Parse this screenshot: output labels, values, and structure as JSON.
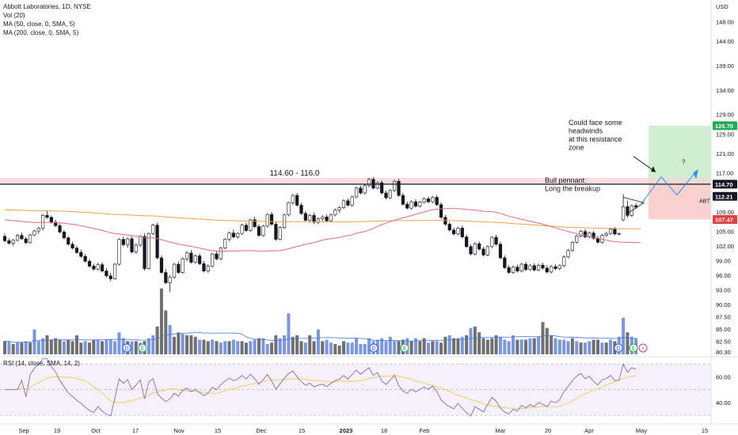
{
  "header": {
    "symbol_line": "Abbott Laboratories, 1D, NYSE",
    "vol_line": "Vol (20)",
    "ma50_line": "MA (50, close, 0, SMA, 5)",
    "ma200_line": "MA (200, close, 0, SMA, 5)",
    "rsi_line": "RSI (14, close, SMA, 14, 2)",
    "currency": "USD"
  },
  "colors": {
    "up": "#ffffff",
    "down": "#131722",
    "ma50": "#e06c7f",
    "ma200": "#f0a04b",
    "vol_up": "#7b96e0",
    "vol_down": "#6f6f6f",
    "vol_ma": "#3d7de0",
    "rsi_line": "#7e57c2",
    "rsi_sma": "#f0d060",
    "target_zone": "#c8ecc8",
    "stop_zone": "#f9c9c9",
    "target_label": "#22ab55",
    "stop_label": "#e0403a"
  },
  "chart_data": {
    "type": "candlestick",
    "symbol": "ABT",
    "timeframe": "1D",
    "ylim": [
      79.5,
      151.0
    ],
    "y_ticks": [
      "148.00",
      "144.00",
      "139.00",
      "134.00",
      "129.00",
      "125.00",
      "121.00",
      "117.00",
      "109.00",
      "105.00",
      "102.00",
      "99.00",
      "96.00",
      "93.00",
      "90.00",
      "87.50",
      "85.00",
      "82.50",
      "80.30"
    ],
    "x_ticks": [
      "Sep",
      "19",
      "Oct",
      "17",
      "Nov",
      "15",
      "Dec",
      "15",
      "2023",
      "18",
      "Feb",
      "Mar",
      "20",
      "Apr",
      "May",
      "15"
    ],
    "price_labels": [
      {
        "text": "126.70",
        "value": 126.7,
        "kind": "target"
      },
      {
        "text": "114.70",
        "value": 114.7,
        "kind": "level"
      },
      {
        "text": "112.21",
        "value": 112.21,
        "kind": "price"
      },
      {
        "text": "107.47",
        "value": 107.47,
        "kind": "stop"
      }
    ],
    "resistance_zone": {
      "label": "114.60 - 116.0",
      "low": 114.6,
      "high": 116.0
    },
    "resistance_line": 114.7,
    "ticker_label": "ABT",
    "annotations": [
      {
        "text": "Could face some\nheadwinds\nat this resistance\nzone"
      },
      {
        "text": "Bull pennant:\nLong the breakup"
      },
      {
        "text": "?"
      }
    ],
    "event_badges": [
      "D",
      "E",
      "D",
      "E",
      "D",
      "E",
      "⚡"
    ],
    "candles": [
      [
        104.0,
        104.6,
        102.8,
        103.1
      ],
      [
        103.1,
        103.6,
        102.3,
        102.6
      ],
      [
        102.6,
        103.5,
        102.0,
        103.2
      ],
      [
        103.2,
        104.5,
        102.9,
        104.2
      ],
      [
        104.2,
        104.8,
        103.3,
        103.5
      ],
      [
        103.5,
        103.9,
        102.4,
        102.7
      ],
      [
        102.7,
        104.5,
        102.5,
        104.3
      ],
      [
        104.3,
        105.4,
        104.0,
        105.1
      ],
      [
        105.1,
        106.0,
        104.5,
        105.7
      ],
      [
        105.7,
        108.6,
        105.2,
        108.3
      ],
      [
        108.3,
        109.2,
        107.6,
        107.9
      ],
      [
        107.9,
        108.3,
        106.6,
        106.9
      ],
      [
        106.9,
        107.4,
        105.9,
        106.2
      ],
      [
        106.2,
        106.6,
        104.6,
        104.9
      ],
      [
        104.9,
        105.3,
        103.4,
        103.7
      ],
      [
        103.7,
        104.1,
        102.1,
        102.4
      ],
      [
        102.4,
        102.9,
        101.3,
        101.6
      ],
      [
        101.6,
        102.1,
        100.4,
        100.7
      ],
      [
        100.7,
        101.3,
        99.6,
        99.9
      ],
      [
        99.9,
        100.4,
        98.6,
        98.9
      ],
      [
        98.9,
        99.4,
        97.6,
        97.9
      ],
      [
        97.9,
        98.4,
        97.0,
        97.3
      ],
      [
        97.3,
        98.6,
        97.0,
        98.2
      ],
      [
        98.2,
        98.7,
        96.6,
        96.9
      ],
      [
        96.9,
        97.5,
        95.6,
        95.9
      ],
      [
        95.9,
        96.5,
        94.8,
        95.3
      ],
      [
        95.3,
        98.5,
        95.1,
        98.3
      ],
      [
        98.3,
        103.6,
        98.0,
        103.4
      ],
      [
        103.4,
        104.0,
        101.9,
        102.3
      ],
      [
        102.3,
        103.8,
        101.6,
        103.5
      ],
      [
        103.5,
        104.0,
        100.5,
        100.8
      ],
      [
        100.8,
        102.6,
        100.4,
        102.2
      ],
      [
        102.2,
        104.3,
        101.9,
        104.0
      ],
      [
        104.0,
        104.6,
        97.0,
        97.4
      ],
      [
        97.4,
        104.8,
        97.2,
        104.6
      ],
      [
        104.6,
        106.6,
        104.3,
        106.3
      ],
      [
        106.3,
        106.8,
        99.3,
        99.6
      ],
      [
        99.6,
        100.1,
        96.3,
        96.6
      ],
      [
        96.6,
        97.3,
        94.2,
        94.5
      ],
      [
        94.5,
        96.1,
        92.6,
        95.6
      ],
      [
        95.6,
        98.6,
        95.3,
        98.3
      ],
      [
        98.3,
        98.9,
        96.3,
        96.6
      ],
      [
        96.6,
        99.7,
        96.3,
        99.4
      ],
      [
        99.4,
        101.0,
        99.0,
        100.6
      ],
      [
        100.6,
        101.2,
        98.4,
        98.7
      ],
      [
        98.7,
        100.3,
        98.4,
        100.0
      ],
      [
        100.0,
        100.5,
        98.1,
        98.4
      ],
      [
        98.4,
        99.0,
        96.6,
        96.9
      ],
      [
        96.9,
        98.3,
        96.5,
        97.9
      ],
      [
        97.9,
        100.6,
        97.6,
        100.4
      ],
      [
        100.4,
        101.0,
        99.1,
        99.4
      ],
      [
        99.4,
        101.9,
        99.1,
        101.6
      ],
      [
        101.6,
        103.6,
        101.3,
        103.4
      ],
      [
        103.4,
        105.0,
        103.0,
        104.7
      ],
      [
        104.7,
        105.4,
        103.6,
        103.9
      ],
      [
        103.9,
        104.9,
        103.5,
        104.6
      ],
      [
        104.6,
        106.6,
        104.3,
        106.3
      ],
      [
        106.3,
        106.8,
        104.9,
        105.2
      ],
      [
        105.2,
        107.6,
        104.9,
        107.4
      ],
      [
        107.4,
        108.0,
        105.7,
        106.0
      ],
      [
        106.0,
        106.5,
        103.9,
        104.2
      ],
      [
        104.2,
        106.4,
        103.9,
        106.1
      ],
      [
        106.1,
        108.7,
        105.8,
        108.5
      ],
      [
        108.5,
        109.0,
        106.2,
        106.5
      ],
      [
        106.5,
        107.0,
        103.1,
        103.4
      ],
      [
        103.4,
        106.1,
        103.1,
        105.8
      ],
      [
        105.8,
        108.7,
        105.5,
        108.4
      ],
      [
        108.4,
        111.1,
        108.1,
        110.9
      ],
      [
        110.9,
        112.7,
        110.5,
        112.4
      ],
      [
        112.4,
        112.9,
        110.1,
        110.4
      ],
      [
        110.4,
        110.9,
        108.4,
        108.7
      ],
      [
        108.7,
        109.2,
        107.0,
        107.3
      ],
      [
        107.3,
        108.6,
        106.8,
        108.3
      ],
      [
        108.3,
        108.9,
        106.6,
        106.9
      ],
      [
        106.9,
        107.9,
        106.5,
        107.6
      ],
      [
        107.6,
        108.4,
        107.1,
        108.0
      ],
      [
        108.0,
        108.5,
        106.9,
        107.2
      ],
      [
        107.2,
        108.7,
        106.9,
        108.4
      ],
      [
        108.4,
        109.7,
        108.1,
        109.4
      ],
      [
        109.4,
        110.2,
        108.8,
        109.9
      ],
      [
        109.9,
        111.6,
        109.6,
        111.3
      ],
      [
        111.3,
        111.8,
        110.1,
        110.4
      ],
      [
        110.4,
        112.4,
        110.1,
        112.1
      ],
      [
        112.1,
        114.2,
        111.8,
        113.9
      ],
      [
        113.9,
        114.4,
        112.6,
        112.9
      ],
      [
        112.9,
        114.7,
        112.6,
        114.4
      ],
      [
        114.4,
        116.0,
        114.1,
        115.7
      ],
      [
        115.7,
        116.2,
        113.6,
        113.9
      ],
      [
        113.9,
        115.3,
        113.6,
        115.0
      ],
      [
        115.0,
        115.5,
        112.6,
        112.9
      ],
      [
        112.9,
        113.4,
        111.6,
        111.9
      ],
      [
        111.9,
        113.7,
        111.6,
        113.4
      ],
      [
        113.4,
        115.6,
        113.1,
        115.3
      ],
      [
        115.3,
        115.8,
        112.1,
        112.4
      ],
      [
        112.4,
        112.9,
        110.3,
        110.6
      ],
      [
        110.6,
        111.1,
        109.5,
        109.8
      ],
      [
        109.8,
        111.4,
        109.5,
        111.1
      ],
      [
        111.1,
        111.6,
        109.9,
        110.2
      ],
      [
        110.2,
        111.3,
        109.9,
        111.0
      ],
      [
        111.0,
        112.0,
        110.7,
        111.7
      ],
      [
        111.7,
        112.2,
        110.8,
        111.1
      ],
      [
        111.1,
        112.3,
        110.8,
        112.0
      ],
      [
        112.0,
        112.5,
        110.2,
        110.5
      ],
      [
        110.5,
        111.0,
        107.6,
        107.9
      ],
      [
        107.9,
        108.4,
        106.2,
        106.5
      ],
      [
        106.5,
        107.0,
        105.0,
        105.3
      ],
      [
        105.3,
        105.8,
        104.2,
        104.5
      ],
      [
        104.5,
        106.0,
        104.2,
        105.7
      ],
      [
        105.7,
        106.2,
        103.6,
        103.9
      ],
      [
        103.9,
        104.4,
        101.6,
        101.9
      ],
      [
        101.9,
        102.4,
        100.1,
        100.4
      ],
      [
        100.4,
        102.8,
        100.1,
        102.5
      ],
      [
        102.5,
        103.0,
        101.1,
        101.4
      ],
      [
        101.4,
        101.9,
        99.9,
        100.2
      ],
      [
        100.2,
        102.2,
        99.9,
        101.9
      ],
      [
        101.9,
        104.1,
        101.6,
        103.8
      ],
      [
        103.8,
        104.3,
        102.1,
        102.4
      ],
      [
        102.4,
        102.9,
        99.3,
        99.6
      ],
      [
        99.6,
        100.1,
        97.3,
        97.6
      ],
      [
        97.6,
        98.1,
        96.3,
        96.6
      ],
      [
        96.6,
        98.0,
        96.3,
        97.7
      ],
      [
        97.7,
        98.2,
        96.6,
        96.9
      ],
      [
        96.9,
        98.6,
        96.6,
        98.3
      ],
      [
        98.3,
        98.8,
        96.9,
        97.2
      ],
      [
        97.2,
        98.3,
        96.9,
        98.0
      ],
      [
        98.0,
        98.5,
        96.8,
        97.1
      ],
      [
        97.1,
        98.4,
        96.8,
        98.1
      ],
      [
        98.1,
        98.6,
        97.2,
        97.5
      ],
      [
        97.5,
        98.1,
        96.4,
        96.7
      ],
      [
        96.7,
        98.1,
        96.4,
        97.8
      ],
      [
        97.8,
        98.3,
        97.1,
        97.4
      ],
      [
        97.4,
        98.3,
        97.1,
        98.0
      ],
      [
        98.0,
        100.1,
        97.7,
        99.8
      ],
      [
        99.8,
        101.4,
        99.5,
        101.1
      ],
      [
        101.1,
        103.1,
        100.8,
        102.8
      ],
      [
        102.8,
        104.4,
        102.5,
        104.1
      ],
      [
        104.1,
        105.3,
        103.8,
        105.0
      ],
      [
        105.0,
        105.5,
        103.6,
        103.9
      ],
      [
        103.9,
        105.0,
        103.6,
        104.7
      ],
      [
        104.7,
        105.1,
        103.3,
        103.6
      ],
      [
        103.6,
        104.1,
        102.5,
        102.8
      ],
      [
        102.8,
        104.5,
        102.5,
        104.2
      ],
      [
        104.2,
        104.9,
        103.9,
        104.6
      ],
      [
        104.6,
        105.8,
        104.3,
        105.5
      ],
      [
        105.5,
        105.9,
        104.2,
        104.5
      ],
      [
        104.5,
        104.8,
        104.2,
        104.6
      ],
      [
        107.4,
        112.7,
        107.1,
        110.1
      ],
      [
        110.1,
        111.3,
        107.8,
        108.3
      ],
      [
        108.3,
        110.5,
        108.0,
        110.3
      ],
      [
        110.3,
        110.8,
        109.6,
        110.0
      ]
    ],
    "volume": [
      [
        9,
        0
      ],
      [
        9,
        1
      ],
      [
        7,
        0
      ],
      [
        8,
        1
      ],
      [
        8,
        0
      ],
      [
        9,
        1
      ],
      [
        8,
        0
      ],
      [
        17,
        1
      ],
      [
        9,
        1
      ],
      [
        11,
        1
      ],
      [
        13,
        0
      ],
      [
        10,
        0
      ],
      [
        11,
        0
      ],
      [
        10,
        0
      ],
      [
        9,
        1
      ],
      [
        10,
        0
      ],
      [
        9,
        0
      ],
      [
        13,
        0
      ],
      [
        8,
        0
      ],
      [
        9,
        1
      ],
      [
        8,
        0
      ],
      [
        10,
        0
      ],
      [
        10,
        1
      ],
      [
        9,
        0
      ],
      [
        10,
        1
      ],
      [
        10,
        1
      ],
      [
        9,
        1
      ],
      [
        15,
        1
      ],
      [
        11,
        1
      ],
      [
        9,
        0
      ],
      [
        9,
        1
      ],
      [
        9,
        0
      ],
      [
        8,
        1
      ],
      [
        9,
        0
      ],
      [
        11,
        1
      ],
      [
        13,
        1
      ],
      [
        19,
        0
      ],
      [
        45,
        0
      ],
      [
        30,
        0
      ],
      [
        20,
        1
      ],
      [
        12,
        0
      ],
      [
        15,
        0
      ],
      [
        14,
        1
      ],
      [
        13,
        0
      ],
      [
        13,
        0
      ],
      [
        12,
        0
      ],
      [
        10,
        1
      ],
      [
        10,
        0
      ],
      [
        9,
        0
      ],
      [
        10,
        1
      ],
      [
        9,
        0
      ],
      [
        8,
        1
      ],
      [
        9,
        1
      ],
      [
        9,
        0
      ],
      [
        10,
        1
      ],
      [
        9,
        1
      ],
      [
        9,
        0
      ],
      [
        8,
        0
      ],
      [
        9,
        1
      ],
      [
        10,
        1
      ],
      [
        11,
        0
      ],
      [
        11,
        1
      ],
      [
        7,
        1
      ],
      [
        8,
        0
      ],
      [
        13,
        0
      ],
      [
        11,
        1
      ],
      [
        13,
        1
      ],
      [
        28,
        1
      ],
      [
        12,
        0
      ],
      [
        13,
        0
      ],
      [
        9,
        0
      ],
      [
        8,
        1
      ],
      [
        13,
        0
      ],
      [
        9,
        0
      ],
      [
        17,
        1
      ],
      [
        9,
        0
      ],
      [
        10,
        1
      ],
      [
        8,
        1
      ],
      [
        7,
        0
      ],
      [
        6,
        0
      ],
      [
        9,
        0
      ],
      [
        8,
        1
      ],
      [
        8,
        1
      ],
      [
        11,
        1
      ],
      [
        7,
        1
      ],
      [
        7,
        1
      ],
      [
        11,
        1
      ],
      [
        9,
        1
      ],
      [
        10,
        1
      ],
      [
        11,
        1
      ],
      [
        9,
        1
      ],
      [
        12,
        1
      ],
      [
        9,
        1
      ],
      [
        9,
        0
      ],
      [
        10,
        0
      ],
      [
        11,
        1
      ],
      [
        9,
        0
      ],
      [
        11,
        1
      ],
      [
        9,
        0
      ],
      [
        11,
        0
      ],
      [
        8,
        1
      ],
      [
        9,
        0
      ],
      [
        9,
        1
      ],
      [
        8,
        0
      ],
      [
        12,
        0
      ],
      [
        13,
        1
      ],
      [
        11,
        0
      ],
      [
        11,
        0
      ],
      [
        12,
        1
      ],
      [
        13,
        0
      ],
      [
        18,
        1
      ],
      [
        19,
        0
      ],
      [
        15,
        0
      ],
      [
        11,
        0
      ],
      [
        10,
        0
      ],
      [
        11,
        0
      ],
      [
        13,
        0
      ],
      [
        12,
        1
      ],
      [
        10,
        1
      ],
      [
        9,
        1
      ],
      [
        13,
        1
      ],
      [
        10,
        0
      ],
      [
        10,
        1
      ],
      [
        10,
        0
      ],
      [
        11,
        1
      ],
      [
        11,
        0
      ],
      [
        12,
        1
      ],
      [
        22,
        0
      ],
      [
        18,
        0
      ],
      [
        13,
        0
      ],
      [
        11,
        1
      ],
      [
        10,
        1
      ],
      [
        10,
        1
      ],
      [
        9,
        1
      ],
      [
        11,
        0
      ],
      [
        9,
        1
      ],
      [
        8,
        0
      ],
      [
        8,
        1
      ],
      [
        9,
        1
      ],
      [
        10,
        0
      ],
      [
        10,
        0
      ],
      [
        8,
        1
      ],
      [
        8,
        0
      ],
      [
        10,
        1
      ],
      [
        9,
        0
      ],
      [
        12,
        1
      ],
      [
        25,
        1
      ],
      [
        15,
        0
      ],
      [
        12,
        1
      ],
      [
        11,
        1
      ]
    ],
    "rsi_ylim": [
      27,
      75
    ],
    "rsi_ticks": [
      "60.00",
      "40.00"
    ]
  }
}
